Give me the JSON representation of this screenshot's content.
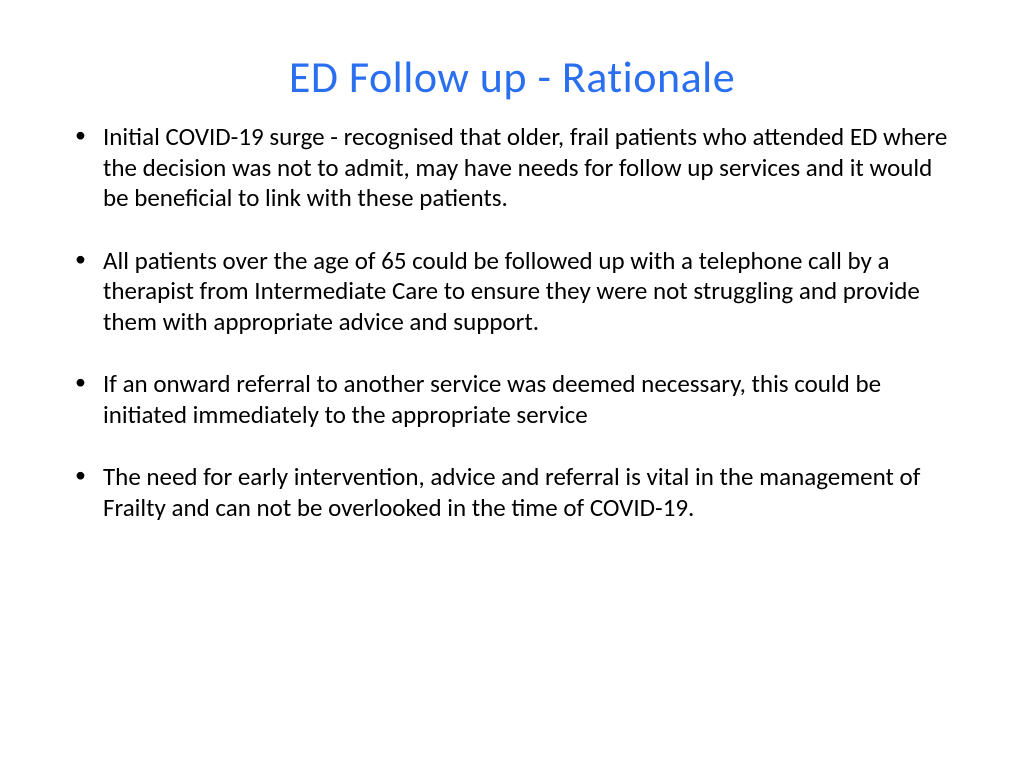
{
  "slide": {
    "title": "ED Follow up - Rationale",
    "title_color": "#2a6ff0",
    "body_color": "#000000",
    "background_color": "#ffffff",
    "title_fontsize": 44,
    "body_fontsize": 25,
    "bullets": [
      "Initial COVID-19 surge - recognised that older, frail patients who attended ED where the decision was not to admit, may have needs for follow up services and it would be beneficial to link with these patients.",
      "All patients over the age of 65 could be followed up with a telephone call by a therapist from Intermediate Care to ensure they were not struggling and provide them  with appropriate advice and support.",
      "If an onward referral to another service was deemed necessary,  this could be initiated immediately to the appropriate service",
      "The need for early intervention, advice and referral is vital in the management of Frailty and can not be overlooked in the time of COVID-19."
    ]
  }
}
